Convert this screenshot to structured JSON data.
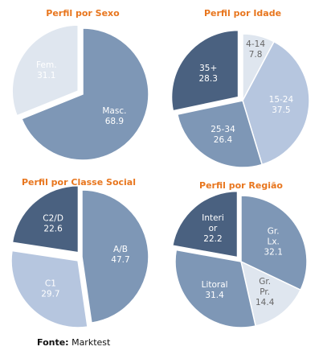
{
  "colors": {
    "title": "#e8761e",
    "label_light": "#ffffff",
    "label_dark": "#666666",
    "stroke": "#ffffff"
  },
  "source": {
    "prefix": "Fonte:",
    "name": "Marktest"
  },
  "chart_data": [
    {
      "type": "pie",
      "title": "Perfil por Sexo",
      "slices": [
        {
          "label": [
            "Masc."
          ],
          "value": "68.9",
          "color": "#7e97b6",
          "text": "#ffffff",
          "explode": false
        },
        {
          "label": [
            "Fem."
          ],
          "value": "31.1",
          "color": "#dfe6ef",
          "text": "#ffffff",
          "explode": true
        }
      ]
    },
    {
      "type": "pie",
      "title": "Perfil por Idade",
      "slices": [
        {
          "label": [
            "4-14"
          ],
          "value": "7.8",
          "color": "#dfe6ef",
          "text": "#666666",
          "explode": false
        },
        {
          "label": [
            "15-24"
          ],
          "value": "37.5",
          "color": "#b6c6df",
          "text": "#ffffff",
          "explode": false
        },
        {
          "label": [
            "25-34"
          ],
          "value": "26.4",
          "color": "#7e97b6",
          "text": "#ffffff",
          "explode": false
        },
        {
          "label": [
            "35+"
          ],
          "value": "28.3",
          "color": "#4a6180",
          "text": "#ffffff",
          "explode": true
        }
      ]
    },
    {
      "type": "pie",
      "title": "Perfil por Classe Social",
      "slices": [
        {
          "label": [
            "A/B"
          ],
          "value": "47.7",
          "color": "#7e97b6",
          "text": "#ffffff",
          "explode": false
        },
        {
          "label": [
            "C1"
          ],
          "value": "29.7",
          "color": "#b6c6df",
          "text": "#ffffff",
          "explode": true
        },
        {
          "label": [
            "C2/D"
          ],
          "value": "22.6",
          "color": "#4a6180",
          "text": "#ffffff",
          "explode": true
        }
      ]
    },
    {
      "type": "pie",
      "title": "Perfil por Região",
      "slices": [
        {
          "label": [
            "Gr.",
            "Lx."
          ],
          "value": "32.1",
          "color": "#7e97b6",
          "text": "#ffffff",
          "explode": false
        },
        {
          "label": [
            "Gr.",
            "Pr."
          ],
          "value": "14.4",
          "color": "#dfe6ef",
          "text": "#666666",
          "explode": false
        },
        {
          "label": [
            "Litoral"
          ],
          "value": "31.4",
          "color": "#7e97b6",
          "text": "#ffffff",
          "explode": false
        },
        {
          "label": [
            "Interi",
            "or"
          ],
          "value": "22.2",
          "color": "#4a6180",
          "text": "#ffffff",
          "explode": true
        }
      ]
    }
  ]
}
